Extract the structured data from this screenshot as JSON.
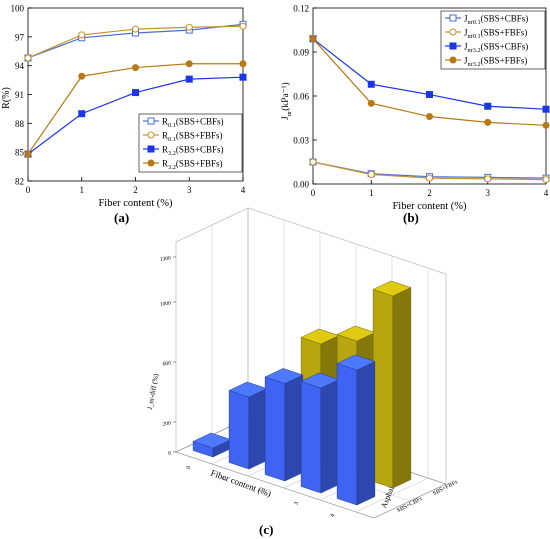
{
  "chart_data": [
    {
      "type": "line",
      "panel": "(a)",
      "xlabel": "Fiber content (%)",
      "ylabel": "R(%)",
      "x": [
        0,
        1,
        2,
        3,
        4
      ],
      "xlim": [
        0,
        4
      ],
      "ylim": [
        82,
        100
      ],
      "xticks": [
        "0",
        "1",
        "2",
        "3",
        "4"
      ],
      "yticks": [
        "82",
        "85",
        "88",
        "91",
        "94",
        "97",
        "100"
      ],
      "legend_position": "bottom-right",
      "series": [
        {
          "name_main": "R",
          "name_sub": "0.1",
          "name_rest": "(SBS+CBFs)",
          "color": "#4a6fd4",
          "marker": "square-open",
          "values": [
            94.8,
            96.9,
            97.4,
            97.7,
            98.3
          ]
        },
        {
          "name_main": "R",
          "name_sub": "0.1",
          "name_rest": "(SBS+FBFs)",
          "color": "#c9912e",
          "marker": "circle-open",
          "values": [
            94.8,
            97.2,
            97.8,
            98.0,
            98.1
          ]
        },
        {
          "name_main": "R",
          "name_sub": "3.2",
          "name_rest": "(SBS+CBFs)",
          "color": "#1a36e8",
          "marker": "square-filled",
          "values": [
            84.8,
            89.0,
            91.2,
            92.6,
            92.8
          ]
        },
        {
          "name_main": "R",
          "name_sub": "3.2",
          "name_rest": "(SBS+FBFs)",
          "color": "#b57a16",
          "marker": "circle-filled",
          "values": [
            84.8,
            92.9,
            93.8,
            94.2,
            94.2
          ]
        }
      ]
    },
    {
      "type": "line",
      "panel": "(b)",
      "xlabel": "Fiber content (%)",
      "ylabel_main": "J",
      "ylabel_sub": "nr",
      "ylabel_rest": "(kPa⁻¹)",
      "x": [
        0,
        1,
        2,
        3,
        4
      ],
      "xlim": [
        0,
        4
      ],
      "ylim": [
        0,
        0.12
      ],
      "xticks": [
        "0",
        "1",
        "2",
        "3",
        "4"
      ],
      "yticks": [
        "0.00",
        "0.03",
        "0.06",
        "0.09",
        "0.12"
      ],
      "legend_position": "top-right",
      "series": [
        {
          "name_main": "J",
          "name_sub": "nr0.1",
          "name_rest": "(SBS+CBFs)",
          "color": "#4a6fd4",
          "marker": "square-open",
          "values": [
            0.015,
            0.007,
            0.005,
            0.0045,
            0.004
          ]
        },
        {
          "name_main": "J",
          "name_sub": "nr0.1",
          "name_rest": "(SBS+FBFs)",
          "color": "#c9912e",
          "marker": "circle-open",
          "values": [
            0.015,
            0.0065,
            0.004,
            0.0035,
            0.003
          ]
        },
        {
          "name_main": "J",
          "name_sub": "nr3.2",
          "name_rest": "(SBS+CBFs)",
          "color": "#1a36e8",
          "marker": "square-filled",
          "values": [
            0.099,
            0.068,
            0.061,
            0.053,
            0.051
          ]
        },
        {
          "name_main": "J",
          "name_sub": "nr3.2",
          "name_rest": "(SBS+FBFs)",
          "color": "#b57a16",
          "marker": "circle-filled",
          "values": [
            0.099,
            0.055,
            0.046,
            0.042,
            0.04
          ]
        }
      ]
    },
    {
      "type": "bar3d",
      "panel": "(c)",
      "xlabel": "Fiber content (%)",
      "ylabel": "Asphalt binder types",
      "zlabel": "J_nr-diff (%)",
      "zticks": [
        "0",
        "200",
        "600",
        "1000",
        "1300"
      ],
      "categories": [
        "0",
        "1",
        "2",
        "3",
        "4"
      ],
      "series": [
        {
          "name": "SBS+CBFs",
          "color": "#3f63f2",
          "values": [
            60,
            480,
            650,
            700,
            900
          ]
        },
        {
          "name": "SBS+FBFs",
          "color": "#b8a60e",
          "values": [
            60,
            300,
            800,
            900,
            1280
          ]
        }
      ]
    }
  ],
  "captions": {
    "a": "(a)",
    "b": "(b)",
    "c": "(c)"
  }
}
